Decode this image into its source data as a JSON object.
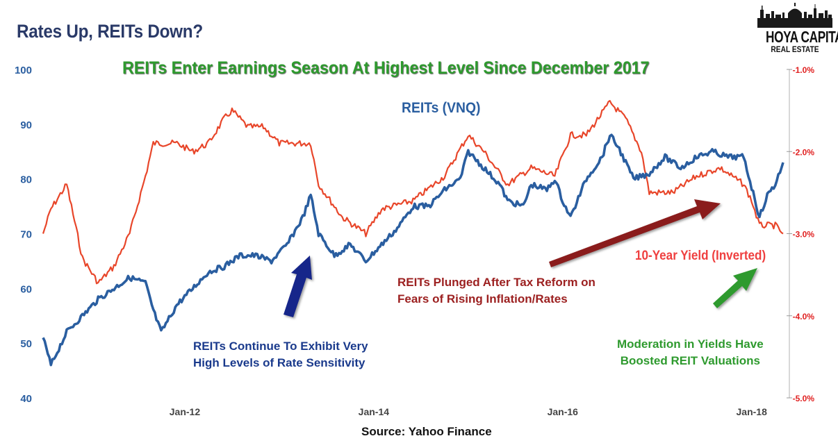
{
  "title": "Rates Up, REITs Down?",
  "subtitle": "REITs Enter Earnings Season At Highest Level Since December 2017",
  "logo": {
    "name": "HOYA CAPITAL",
    "sub": "REAL ESTATE"
  },
  "source": "Source: Yahoo Finance",
  "annotations": {
    "reit_series": "REITs (VNQ)",
    "yield_series": "10-Year Yield (Inverted)",
    "blue_line1": "REITs Continue To Exhibit Very",
    "blue_line2": "High Levels of Rate Sensitivity",
    "red_line1": "REITs Plunged After Tax Reform on",
    "red_line2": "Fears of Rising Inflation/Rates",
    "green_line1": "Moderation in Yields Have",
    "green_line2": "Boosted REIT Valuations"
  },
  "colors": {
    "reit": "#2a5ea0",
    "yield": "#e8462a",
    "title": "#2a3a68",
    "green": "#2e9a2e",
    "arrow_blue": "#15278a",
    "arrow_red": "#8a1a1a",
    "arrow_green": "#2e9a2e",
    "left_axis": "#2a5ea0",
    "right_axis": "#e02020"
  },
  "chart_data": {
    "type": "line",
    "x_ticks": [
      "Jan-12",
      "Jan-14",
      "Jan-16",
      "Jan-18"
    ],
    "x_range": [
      "2010-07",
      "2018-05"
    ],
    "y_left": {
      "ticks": [
        "100",
        "90",
        "80",
        "70",
        "60",
        "50",
        "40"
      ],
      "ylim": [
        40,
        100
      ]
    },
    "y_right": {
      "ticks": [
        "-1.0%",
        "-2.0%",
        "-3.0%",
        "-4.0%",
        "-5.0%"
      ],
      "ylim": [
        -5.0,
        -1.0
      ],
      "inverted_yield": true
    },
    "series": [
      {
        "name": "REITs (VNQ)",
        "axis": "left",
        "points": [
          [
            "2010-07",
            51
          ],
          [
            "2010-08",
            46
          ],
          [
            "2010-10",
            52
          ],
          [
            "2010-12",
            55
          ],
          [
            "2011-02",
            58
          ],
          [
            "2011-04",
            60
          ],
          [
            "2011-06",
            62
          ],
          [
            "2011-08",
            61
          ],
          [
            "2011-09",
            56
          ],
          [
            "2011-10",
            52
          ],
          [
            "2011-12",
            57
          ],
          [
            "2012-02",
            60
          ],
          [
            "2012-04",
            63
          ],
          [
            "2012-06",
            64
          ],
          [
            "2012-08",
            66
          ],
          [
            "2012-10",
            66
          ],
          [
            "2012-12",
            65
          ],
          [
            "2013-02",
            68
          ],
          [
            "2013-04",
            73
          ],
          [
            "2013-05",
            77
          ],
          [
            "2013-06",
            70
          ],
          [
            "2013-08",
            66
          ],
          [
            "2013-10",
            68
          ],
          [
            "2013-12",
            65
          ],
          [
            "2014-02",
            68
          ],
          [
            "2014-04",
            71
          ],
          [
            "2014-06",
            75
          ],
          [
            "2014-08",
            75
          ],
          [
            "2014-10",
            78
          ],
          [
            "2014-12",
            80
          ],
          [
            "2015-01",
            85
          ],
          [
            "2015-03",
            82
          ],
          [
            "2015-05",
            79
          ],
          [
            "2015-06",
            76
          ],
          [
            "2015-08",
            75
          ],
          [
            "2015-09",
            79
          ],
          [
            "2015-11",
            78
          ],
          [
            "2015-12",
            80
          ],
          [
            "2016-01",
            76
          ],
          [
            "2016-02",
            73
          ],
          [
            "2016-04",
            80
          ],
          [
            "2016-06",
            84
          ],
          [
            "2016-07",
            88
          ],
          [
            "2016-08",
            86
          ],
          [
            "2016-10",
            80
          ],
          [
            "2016-12",
            81
          ],
          [
            "2017-02",
            84
          ],
          [
            "2017-04",
            82
          ],
          [
            "2017-06",
            84
          ],
          [
            "2017-08",
            85
          ],
          [
            "2017-10",
            84
          ],
          [
            "2017-12",
            84
          ],
          [
            "2018-02",
            73
          ],
          [
            "2018-03",
            77
          ],
          [
            "2018-04",
            79
          ],
          [
            "2018-05",
            83
          ]
        ]
      },
      {
        "name": "10-Year Yield (Inverted)",
        "axis": "right",
        "points": [
          [
            "2010-07",
            -3.0
          ],
          [
            "2010-08",
            -2.7
          ],
          [
            "2010-10",
            -2.4
          ],
          [
            "2010-12",
            -3.3
          ],
          [
            "2011-02",
            -3.6
          ],
          [
            "2011-04",
            -3.4
          ],
          [
            "2011-06",
            -3.0
          ],
          [
            "2011-08",
            -2.3
          ],
          [
            "2011-09",
            -1.9
          ],
          [
            "2011-12",
            -1.9
          ],
          [
            "2012-02",
            -2.0
          ],
          [
            "2012-04",
            -1.9
          ],
          [
            "2012-06",
            -1.6
          ],
          [
            "2012-07",
            -1.5
          ],
          [
            "2012-09",
            -1.7
          ],
          [
            "2012-11",
            -1.7
          ],
          [
            "2013-01",
            -1.9
          ],
          [
            "2013-03",
            -1.9
          ],
          [
            "2013-05",
            -1.9
          ],
          [
            "2013-06",
            -2.4
          ],
          [
            "2013-09",
            -2.8
          ],
          [
            "2013-12",
            -3.0
          ],
          [
            "2014-02",
            -2.7
          ],
          [
            "2014-06",
            -2.6
          ],
          [
            "2014-10",
            -2.3
          ],
          [
            "2015-01",
            -1.8
          ],
          [
            "2015-03",
            -2.0
          ],
          [
            "2015-06",
            -2.4
          ],
          [
            "2015-09",
            -2.2
          ],
          [
            "2015-12",
            -2.3
          ],
          [
            "2016-02",
            -1.8
          ],
          [
            "2016-04",
            -1.8
          ],
          [
            "2016-07",
            -1.4
          ],
          [
            "2016-09",
            -1.6
          ],
          [
            "2016-11",
            -2.0
          ],
          [
            "2016-12",
            -2.5
          ],
          [
            "2017-03",
            -2.5
          ],
          [
            "2017-06",
            -2.3
          ],
          [
            "2017-09",
            -2.2
          ],
          [
            "2017-12",
            -2.4
          ],
          [
            "2018-01",
            -2.6
          ],
          [
            "2018-02",
            -2.9
          ],
          [
            "2018-04",
            -2.9
          ],
          [
            "2018-05",
            -3.0
          ]
        ]
      }
    ],
    "grid": false,
    "legend": "labels on chart"
  }
}
